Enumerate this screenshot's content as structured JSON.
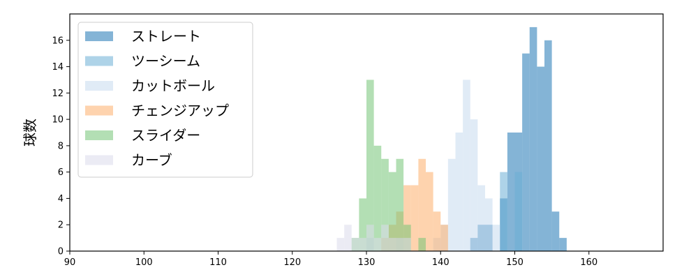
{
  "chart_data": {
    "type": "bar",
    "subtype": "overlapping-histogram",
    "ylabel": "球数",
    "xlabel": "",
    "xlim": [
      90,
      170
    ],
    "ylim": [
      0,
      18
    ],
    "bin_width": 1,
    "x_ticks": [
      90,
      100,
      110,
      120,
      130,
      140,
      150,
      160
    ],
    "y_ticks": [
      0,
      2,
      4,
      6,
      8,
      10,
      12,
      14,
      16
    ],
    "grid": false,
    "legend_position": "top-left",
    "series": [
      {
        "name": "ストレート",
        "color": "#1f77b4",
        "bins": [
          [
            144,
            1
          ],
          [
            145,
            2
          ],
          [
            146,
            2
          ],
          [
            148,
            4
          ],
          [
            149,
            9
          ],
          [
            150,
            9
          ],
          [
            151,
            15
          ],
          [
            152,
            17
          ],
          [
            153,
            14
          ],
          [
            154,
            16
          ],
          [
            155,
            3
          ],
          [
            156,
            1
          ]
        ]
      },
      {
        "name": "ツーシーム",
        "color": "#6baed6",
        "bins": [
          [
            148,
            6
          ],
          [
            150,
            6
          ]
        ]
      },
      {
        "name": "カットボール",
        "color": "#c6dbef",
        "bins": [
          [
            130,
            1
          ],
          [
            134,
            1
          ],
          [
            139,
            1
          ],
          [
            140,
            2
          ],
          [
            141,
            7
          ],
          [
            142,
            9
          ],
          [
            143,
            13
          ],
          [
            144,
            10
          ],
          [
            145,
            5
          ],
          [
            146,
            4
          ],
          [
            147,
            2
          ]
        ]
      },
      {
        "name": "チェンジアップ",
        "color": "#fdae6b",
        "bins": [
          [
            132,
            1
          ],
          [
            133,
            2
          ],
          [
            134,
            3
          ],
          [
            135,
            5
          ],
          [
            136,
            5
          ],
          [
            137,
            7
          ],
          [
            138,
            6
          ],
          [
            139,
            3
          ],
          [
            140,
            2
          ]
        ]
      },
      {
        "name": "スライダー",
        "color": "#74c476",
        "bins": [
          [
            128,
            1
          ],
          [
            129,
            4
          ],
          [
            130,
            13
          ],
          [
            131,
            8
          ],
          [
            132,
            7
          ],
          [
            133,
            6
          ],
          [
            134,
            7
          ],
          [
            135,
            2
          ],
          [
            137,
            1
          ]
        ]
      },
      {
        "name": "カーブ",
        "color": "#dadaeb",
        "bins": [
          [
            126,
            1
          ],
          [
            127,
            2
          ],
          [
            128,
            1
          ],
          [
            129,
            1
          ],
          [
            130,
            2
          ],
          [
            131,
            1
          ],
          [
            132,
            2
          ],
          [
            133,
            1
          ],
          [
            134,
            1
          ],
          [
            135,
            1
          ]
        ]
      }
    ]
  }
}
